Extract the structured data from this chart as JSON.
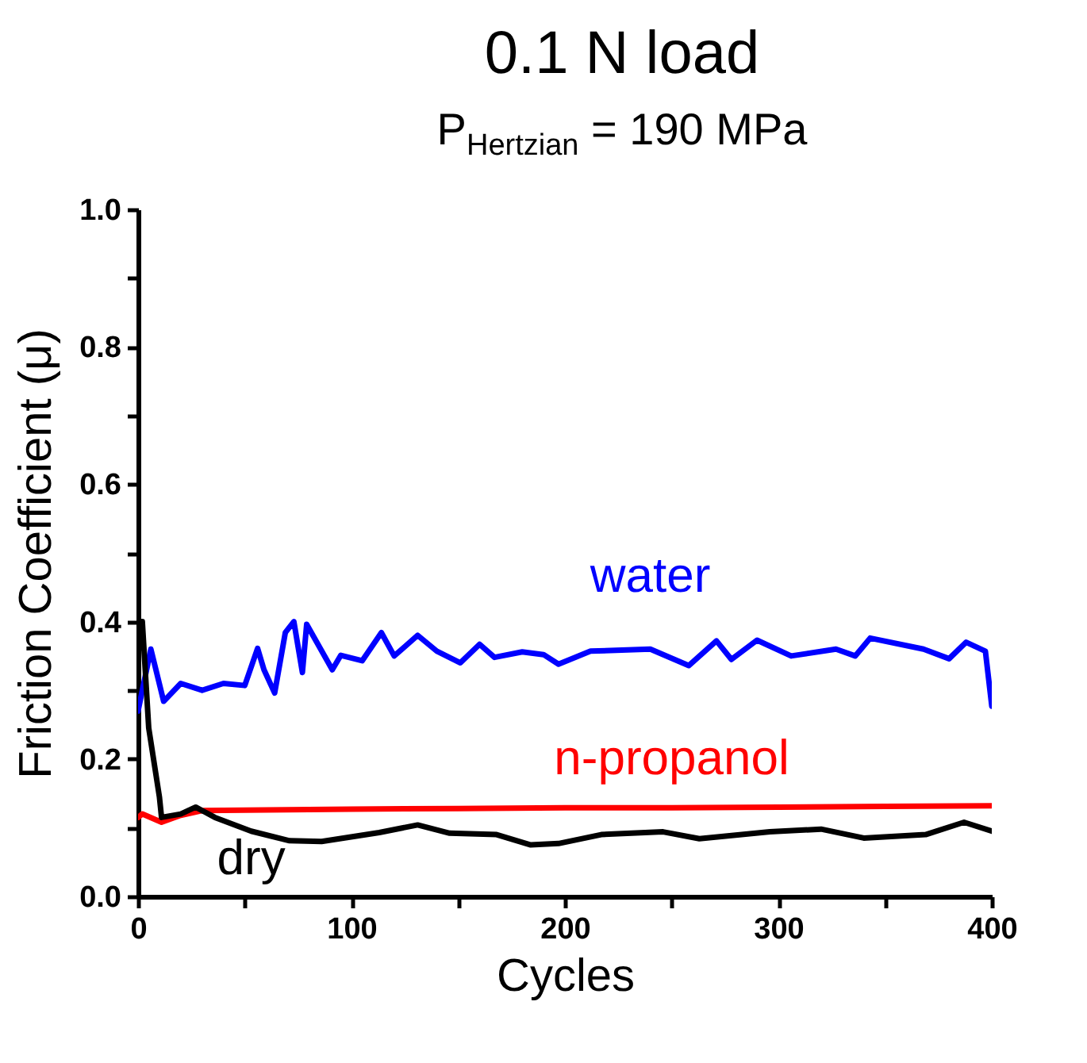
{
  "chart_data": {
    "type": "line",
    "title": "0.1 N load",
    "subtitle": "P$_{Hertzian}$ = 190 MPa",
    "xlabel": "Cycles",
    "ylabel": "Friction Coefficient (μ)",
    "xlim": [
      0,
      400
    ],
    "xticks": [
      0,
      {
        "value": 50,
        "label": null
      },
      100,
      {
        "value": 150,
        "label": null
      },
      200,
      {
        "value": 250,
        "label": null
      },
      300,
      {
        "value": 350,
        "label": null
      },
      400
    ],
    "ylim": [
      0,
      1
    ],
    "yticks": [
      {
        "value": 0,
        "label": "0.0"
      },
      {
        "value": 0.1,
        "label": null
      },
      0.2,
      {
        "value": 0.3,
        "label": null
      },
      0.4,
      {
        "value": 0.5,
        "label": null
      },
      0.6,
      {
        "value": 0.7,
        "label": null
      },
      0.8,
      {
        "value": 0.9,
        "label": null
      },
      {
        "value": 1,
        "label": "1.0"
      }
    ],
    "grid": false,
    "legend": false,
    "marker": "none",
    "line_style": "solid",
    "series": [
      {
        "name": "water",
        "color": "#0000ff",
        "x": [
          0,
          2,
          6,
          12,
          20,
          30,
          40,
          50,
          56,
          59,
          64,
          69,
          73,
          77,
          79,
          91,
          95,
          105,
          114,
          120,
          131,
          140,
          151,
          160,
          167,
          180,
          190,
          197,
          212,
          240,
          258,
          271,
          278,
          290,
          306,
          327,
          336,
          343,
          368,
          380,
          388,
          397,
          400
        ],
        "values": [
          0.27,
          0.3,
          0.36,
          0.284,
          0.31,
          0.3,
          0.31,
          0.307,
          0.361,
          0.33,
          0.296,
          0.384,
          0.4,
          0.326,
          0.396,
          0.33,
          0.351,
          0.343,
          0.384,
          0.35,
          0.38,
          0.357,
          0.34,
          0.367,
          0.348,
          0.356,
          0.352,
          0.338,
          0.357,
          0.36,
          0.336,
          0.372,
          0.345,
          0.373,
          0.35,
          0.36,
          0.35,
          0.376,
          0.36,
          0.346,
          0.37,
          0.357,
          0.277
        ]
      },
      {
        "name": "n-propanol",
        "color": "#ff0000",
        "x": [
          0,
          2,
          11,
          20,
          30,
          60,
          100,
          150,
          200,
          250,
          300,
          350,
          400
        ],
        "values": [
          0.115,
          0.12,
          0.108,
          0.118,
          0.125,
          0.126,
          0.127,
          0.128,
          0.129,
          0.129,
          0.13,
          0.131,
          0.132
        ]
      },
      {
        "name": "dry",
        "color": "#000000",
        "x": [
          0,
          2,
          5,
          10,
          11,
          20,
          27,
          36,
          53,
          71,
          86,
          113,
          131,
          146,
          168,
          184,
          197,
          217,
          246,
          263,
          296,
          320,
          340,
          369,
          387,
          400
        ],
        "values": [
          0.4,
          0.4,
          0.245,
          0.145,
          0.115,
          0.12,
          0.13,
          0.115,
          0.095,
          0.081,
          0.08,
          0.093,
          0.104,
          0.092,
          0.09,
          0.075,
          0.077,
          0.09,
          0.094,
          0.084,
          0.094,
          0.098,
          0.085,
          0.09,
          0.108,
          0.095
        ]
      }
    ]
  }
}
